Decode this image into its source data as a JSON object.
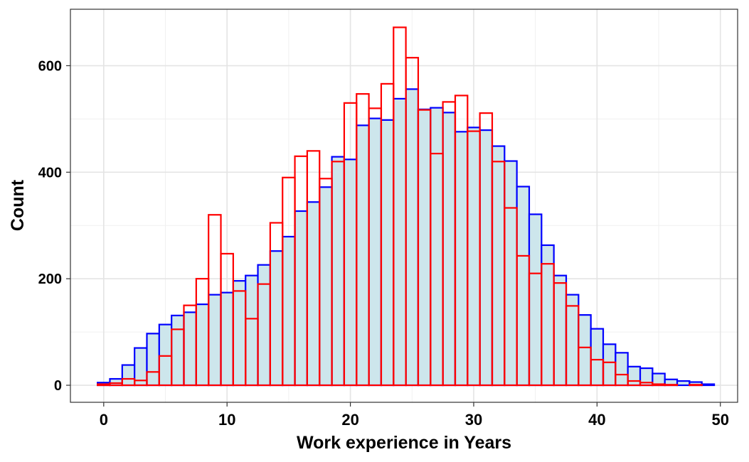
{
  "chart_data": {
    "type": "bar",
    "subtype": "overlaid-histogram",
    "title": "",
    "xlabel": "Work experience in Years",
    "ylabel": "Count",
    "xlim": [
      -2.7,
      51.4
    ],
    "ylim": [
      -32,
      706
    ],
    "x_ticks": [
      0,
      10,
      20,
      30,
      40,
      50
    ],
    "y_ticks": [
      0,
      200,
      400,
      600
    ],
    "grid": true,
    "legend": "none",
    "bin_width": 1,
    "bin_start": -0.5,
    "series": [
      {
        "outline_color": "#0000FF",
        "fill_color": "#CDE6EC",
        "values": [
          5,
          12,
          38,
          70,
          97,
          114,
          131,
          137,
          152,
          170,
          174,
          196,
          206,
          226,
          252,
          279,
          327,
          344,
          372,
          429,
          424,
          488,
          501,
          498,
          538,
          556,
          518,
          521,
          512,
          476,
          484,
          479,
          449,
          421,
          373,
          321,
          263,
          206,
          170,
          132,
          106,
          77,
          61,
          35,
          32,
          22,
          11,
          8,
          6,
          2
        ]
      },
      {
        "outline_color": "#FF0000",
        "fill_color": "none",
        "values": [
          2,
          4,
          12,
          9,
          25,
          55,
          105,
          150,
          200,
          320,
          247,
          177,
          125,
          190,
          305,
          390,
          430,
          440,
          388,
          420,
          530,
          547,
          520,
          566,
          672,
          615,
          517,
          435,
          532,
          544,
          477,
          511,
          420,
          333,
          243,
          210,
          228,
          192,
          149,
          71,
          48,
          43,
          20,
          8,
          5,
          2,
          1,
          0,
          1,
          0
        ]
      }
    ]
  }
}
